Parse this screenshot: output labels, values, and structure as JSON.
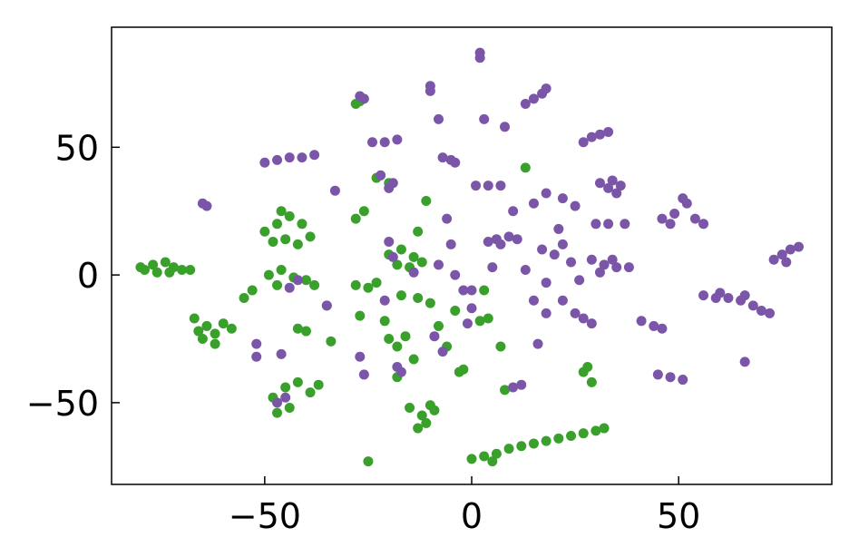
{
  "chart_data": {
    "type": "scatter",
    "xlim": [
      -87,
      87
    ],
    "ylim": [
      -82,
      97
    ],
    "xticks": [
      {
        "value": -50,
        "label": "−50"
      },
      0,
      50
    ],
    "yticks": [
      {
        "value": -50,
        "label": "−50"
      },
      0,
      50
    ],
    "series": [
      {
        "color": "#3aa02c",
        "x": [
          -80,
          -77,
          -74,
          -72,
          -70,
          -76,
          -79,
          -73,
          -68,
          -67,
          -64,
          -62,
          -60,
          -58,
          -65,
          -62,
          -66,
          -50,
          -47,
          -44,
          -41,
          -39,
          -45,
          -48,
          -42,
          -46,
          -49,
          -46,
          -43,
          -40,
          -38,
          -47,
          -42,
          -40,
          -48,
          -45,
          -42,
          -39,
          -37,
          -44,
          -47,
          -28,
          -26,
          -23,
          -20,
          -28,
          -25,
          -23,
          -20,
          -17,
          -14,
          -12,
          -18,
          -15,
          -17,
          -13,
          -20,
          -18,
          -16,
          -15,
          -12,
          -10,
          -13,
          -11,
          -9,
          -2,
          -3,
          2,
          4,
          3,
          0,
          3,
          6,
          9,
          12,
          15,
          18,
          21,
          24,
          27,
          30,
          32,
          5,
          7,
          8,
          27,
          29,
          28,
          -25,
          -53,
          -55,
          -35,
          -34,
          -27,
          -21,
          -8,
          -6,
          -14,
          -18,
          -10,
          -13,
          -11,
          -4,
          13,
          -27,
          -28
        ],
        "values": [
          3,
          4,
          5,
          3,
          2,
          1,
          2,
          1,
          2,
          -17,
          -20,
          -23,
          -19,
          -21,
          -25,
          -27,
          -22,
          17,
          20,
          23,
          20,
          15,
          14,
          13,
          12,
          25,
          0,
          2,
          -1,
          -2,
          -4,
          -4,
          -21,
          -22,
          -48,
          -44,
          -42,
          -46,
          -43,
          -52,
          -54,
          22,
          25,
          38,
          36,
          -4,
          -5,
          -3,
          8,
          10,
          7,
          5,
          4,
          3,
          -8,
          -9,
          -25,
          -28,
          -24,
          -52,
          -55,
          -51,
          -60,
          -58,
          -53,
          -37,
          -38,
          -18,
          -17,
          -6,
          -72,
          -71,
          -70,
          -68,
          -67,
          -66,
          -65,
          -64,
          -63,
          -62,
          -61,
          -60,
          -73,
          -28,
          -45,
          -38,
          -42,
          -36,
          -73,
          -6,
          -9,
          -12,
          -26,
          -16,
          -18,
          -20,
          -28,
          -33,
          -40,
          -11,
          17,
          29,
          -14,
          42,
          68,
          67
        ]
      },
      {
        "color": "#7b56a8",
        "x": [
          -65,
          -64,
          -50,
          -47,
          -44,
          -41,
          -38,
          -33,
          -27,
          -26,
          -24,
          -21,
          -18,
          -22,
          -19,
          -20,
          -10,
          -10,
          -8,
          -7,
          -5,
          -4,
          2,
          2,
          13,
          15,
          17,
          18,
          3,
          8,
          27,
          29,
          31,
          33,
          1,
          4,
          7,
          4,
          6,
          9,
          11,
          7,
          31,
          33,
          35,
          36,
          34,
          30,
          33,
          37,
          29,
          32,
          35,
          38,
          31,
          34,
          46,
          49,
          52,
          54,
          56,
          51,
          48,
          73,
          75,
          77,
          79,
          76,
          56,
          59,
          62,
          65,
          68,
          70,
          72,
          60,
          66,
          41,
          44,
          46,
          27,
          29,
          45,
          48,
          51,
          66,
          16,
          10,
          12,
          0,
          -2,
          -47,
          -45,
          -52,
          -52,
          -46,
          -26,
          -18,
          -17,
          10,
          15,
          18,
          22,
          25,
          13,
          18,
          20,
          22,
          24,
          26,
          15,
          18,
          22,
          25,
          -6,
          -5,
          -8,
          -4,
          5,
          0,
          -1,
          -9,
          -7,
          -19,
          -14,
          -20,
          -44,
          -42,
          -27,
          -21,
          -35,
          17,
          21
        ],
        "values": [
          28,
          27,
          44,
          45,
          46,
          46,
          47,
          33,
          70,
          69,
          52,
          52,
          53,
          39,
          36,
          34,
          74,
          72,
          61,
          46,
          45,
          44,
          87,
          85,
          67,
          69,
          71,
          73,
          61,
          58,
          52,
          54,
          55,
          56,
          35,
          35,
          35,
          13,
          14,
          15,
          14,
          12,
          36,
          34,
          32,
          35,
          37,
          20,
          20,
          20,
          6,
          4,
          3,
          3,
          1,
          6,
          22,
          24,
          28,
          22,
          20,
          30,
          20,
          6,
          8,
          10,
          11,
          5,
          -8,
          -9,
          -9,
          -10,
          -12,
          -14,
          -15,
          -7,
          -8,
          -18,
          -20,
          -21,
          -17,
          -19,
          -39,
          -40,
          -41,
          -34,
          -27,
          -44,
          -43,
          -6,
          -6,
          -50,
          -48,
          -27,
          -32,
          -31,
          -39,
          -36,
          -38,
          25,
          28,
          32,
          30,
          27,
          2,
          -3,
          8,
          12,
          5,
          -2,
          -10,
          -15,
          -10,
          -15,
          22,
          12,
          4,
          0,
          3,
          -13,
          -19,
          -24,
          -30,
          7,
          1,
          13,
          -5,
          -2,
          -32,
          -10,
          -12,
          10,
          18
        ]
      }
    ]
  }
}
